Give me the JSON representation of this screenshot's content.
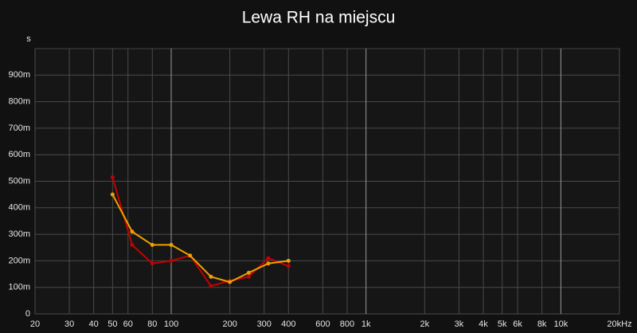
{
  "chart_data": {
    "type": "line",
    "title": "Lewa RH na miejscu",
    "y_label": "s",
    "x_scale": "log",
    "grid": true,
    "x": [
      50,
      63,
      80,
      100,
      125,
      160,
      200,
      250,
      315,
      400
    ],
    "series": [
      {
        "color": "#c40000",
        "values": [
          0.515,
          0.26,
          0.19,
          0.2,
          0.22,
          0.105,
          0.125,
          0.14,
          0.21,
          0.18
        ]
      },
      {
        "color": "#f0a000",
        "values": [
          0.45,
          0.31,
          0.26,
          0.26,
          0.22,
          0.14,
          0.12,
          0.155,
          0.19,
          0.2
        ]
      }
    ],
    "xlim": [
      20,
      20000
    ],
    "xticks": [
      20,
      30,
      40,
      50,
      60,
      80,
      100,
      200,
      300,
      400,
      600,
      800,
      {
        "value": 1000,
        "label": "1k"
      },
      {
        "value": 2000,
        "label": "2k"
      },
      {
        "value": 3000,
        "label": "3k"
      },
      {
        "value": 4000,
        "label": "4k"
      },
      {
        "value": 5000,
        "label": "5k"
      },
      {
        "value": 6000,
        "label": "6k"
      },
      {
        "value": 8000,
        "label": "8k"
      },
      {
        "value": 10000,
        "label": "10k"
      },
      {
        "value": 20000,
        "label": "20kHz"
      }
    ],
    "ylim": [
      0,
      1
    ],
    "yticks": [
      0,
      {
        "value": 0.1,
        "label": "100m"
      },
      {
        "value": 0.2,
        "label": "200m"
      },
      {
        "value": 0.3,
        "label": "300m"
      },
      {
        "value": 0.4,
        "label": "400m"
      },
      {
        "value": 0.5,
        "label": "500m"
      },
      {
        "value": 0.6,
        "label": "600m"
      },
      {
        "value": 0.7,
        "label": "700m"
      },
      {
        "value": 0.8,
        "label": "800m"
      },
      {
        "value": 0.9,
        "label": "900m"
      }
    ]
  }
}
